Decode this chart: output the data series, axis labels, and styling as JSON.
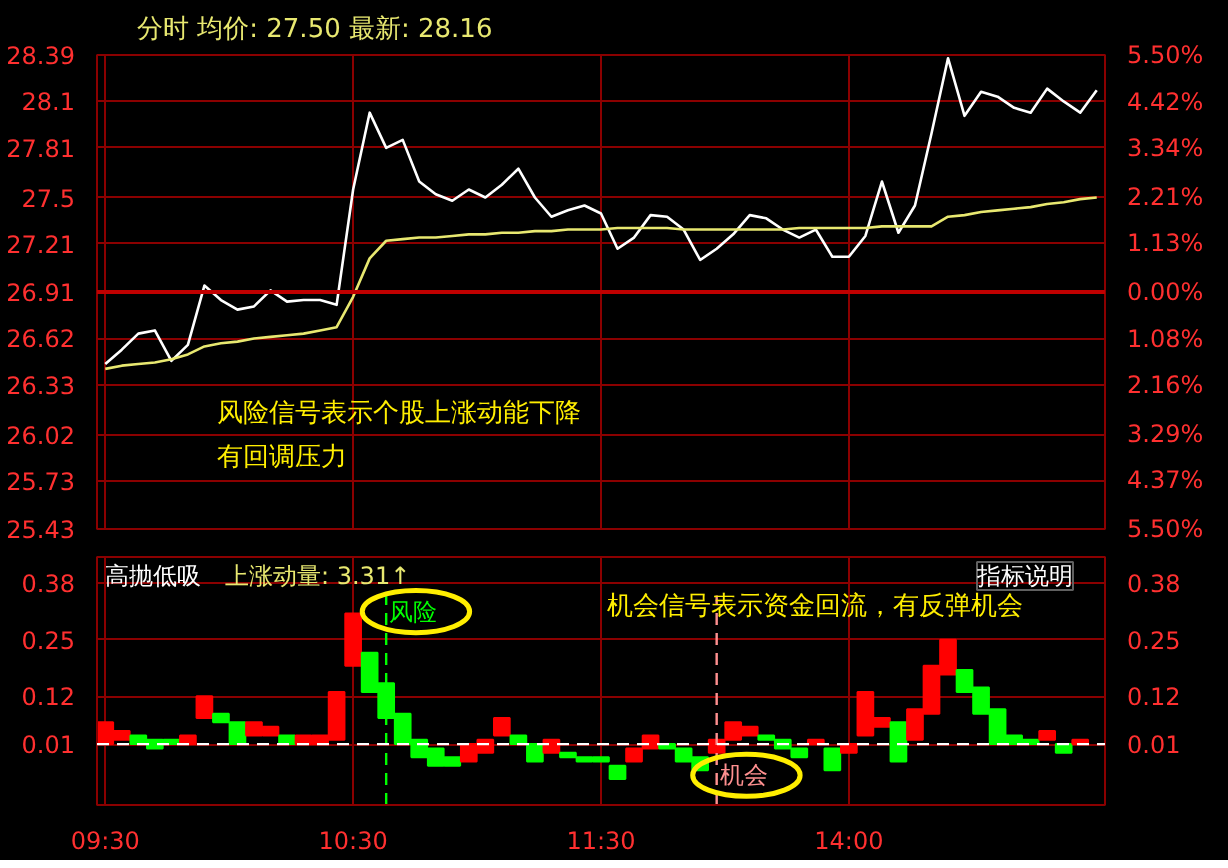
{
  "chart_data": [
    {
      "type": "line",
      "subtitle": "分时 均价: 27.50 最新: 28.16",
      "categories": [
        null,
        null,
        null,
        null,
        null,
        null,
        null,
        null,
        null,
        null,
        null,
        null,
        null,
        null,
        null,
        null,
        null,
        null,
        null,
        null,
        null,
        null,
        null,
        null,
        null,
        null,
        null,
        null,
        null,
        null,
        null,
        null,
        null,
        null,
        null,
        null,
        null,
        null,
        null,
        null,
        null,
        null,
        null,
        null,
        null,
        null,
        null,
        null,
        null,
        null,
        null,
        null,
        null,
        null,
        null,
        null,
        null,
        null,
        null,
        null,
        null
      ],
      "ylim": [
        25.43,
        28.39
      ],
      "yticks": [
        28.39,
        28.1,
        27.81,
        27.5,
        27.21,
        26.91,
        26.62,
        26.33,
        26.02,
        25.73,
        25.43
      ],
      "y2lim": [
        -5.5,
        5.5
      ],
      "y2ticks": [
        {
          "value": 5.5,
          "label": "5.50%"
        },
        {
          "value": 4.42,
          "label": "4.42%"
        },
        {
          "value": 3.34,
          "label": "3.34%"
        },
        {
          "value": 2.21,
          "label": "2.21%"
        },
        {
          "value": 1.13,
          "label": "1.13%"
        },
        {
          "value": 0,
          "label": "0.00%"
        },
        {
          "value": -1.08,
          "label": "1.08%"
        },
        {
          "value": -2.16,
          "label": "2.16%"
        },
        {
          "value": -3.29,
          "label": "3.29%"
        },
        {
          "value": -4.37,
          "label": "4.37%"
        },
        {
          "value": -5.5,
          "label": "5.50%"
        }
      ],
      "tick_labels": "y",
      "grid": true,
      "series": [
        {
          "color": "#ffffff",
          "values": [
            26.46,
            26.55,
            26.65,
            26.67,
            26.48,
            26.58,
            26.95,
            26.86,
            26.8,
            26.82,
            26.92,
            26.85,
            26.86,
            26.86,
            26.83,
            27.55,
            28.03,
            27.81,
            27.86,
            27.6,
            27.52,
            27.48,
            27.55,
            27.5,
            27.58,
            27.68,
            27.5,
            27.38,
            27.42,
            27.45,
            27.4,
            27.18,
            27.25,
            27.39,
            27.38,
            27.3,
            27.11,
            27.18,
            27.27,
            27.39,
            27.37,
            27.3,
            27.25,
            27.3,
            27.13,
            27.13,
            27.26,
            27.6,
            27.28,
            27.45,
            27.9,
            28.37,
            28.01,
            28.16,
            28.13,
            28.06,
            28.03,
            28.18,
            28.1,
            28.03,
            28.17
          ]
        },
        {
          "color": "#e8e870",
          "values": [
            26.43,
            26.45,
            26.46,
            26.47,
            26.49,
            26.52,
            26.57,
            26.59,
            26.6,
            26.62,
            26.63,
            26.64,
            26.65,
            26.67,
            26.69,
            26.88,
            27.12,
            27.23,
            27.24,
            27.25,
            27.25,
            27.26,
            27.27,
            27.27,
            27.28,
            27.28,
            27.29,
            27.29,
            27.3,
            27.3,
            27.3,
            27.31,
            27.31,
            27.31,
            27.31,
            27.3,
            27.3,
            27.3,
            27.3,
            27.3,
            27.3,
            27.3,
            27.31,
            27.31,
            27.31,
            27.31,
            27.31,
            27.32,
            27.32,
            27.32,
            27.32,
            27.38,
            27.39,
            27.41,
            27.42,
            27.43,
            27.44,
            27.46,
            27.47,
            27.49,
            27.5
          ]
        }
      ],
      "ref_lines": [
        {
          "axis": "y",
          "value": 26.91,
          "color": "#c00000"
        }
      ],
      "annotations": [
        "风险信号表示个股上涨动能下降",
        "有回调压力"
      ]
    },
    {
      "type": "bar",
      "title": "高抛低吸",
      "subtitle": "上涨动量: 3.31↑",
      "categories": [
        "09:30",
        null,
        null,
        null,
        null,
        null,
        null,
        null,
        null,
        null,
        null,
        null,
        null,
        null,
        null,
        "10:30",
        null,
        null,
        null,
        null,
        null,
        null,
        null,
        null,
        null,
        null,
        null,
        null,
        null,
        null,
        "11:30",
        null,
        null,
        null,
        null,
        null,
        null,
        null,
        null,
        null,
        null,
        null,
        null,
        null,
        null,
        "14:00",
        null,
        null,
        null,
        null,
        null,
        null,
        null,
        null,
        null,
        null,
        null,
        null,
        null,
        null,
        null
      ],
      "ylim": [
        -0.13,
        0.44
      ],
      "yticks": [
        0.01,
        0.12,
        0.25,
        0.38
      ],
      "y2lim": [
        -0.13,
        0.44
      ],
      "y2ticks": [
        0.01,
        0.12,
        0.25,
        0.38
      ],
      "grid": true,
      "base": [
        0.01,
        0.02,
        0.01,
        0,
        0.01,
        0.01,
        0.07,
        0.06,
        0.01,
        0.03,
        0.03,
        0.01,
        0.01,
        0.01,
        0.02,
        0.19,
        0.13,
        0.07,
        0.01,
        -0.02,
        -0.04,
        -0.04,
        -0.03,
        -0.01,
        0.03,
        0.01,
        -0.03,
        -0.01,
        -0.02,
        -0.03,
        -0.03,
        -0.07,
        -0.03,
        0,
        0,
        -0.03,
        -0.05,
        -0.01,
        0.02,
        0.03,
        0.02,
        0,
        -0.02,
        0.01,
        -0.05,
        -0.01,
        0.03,
        0.05,
        -0.03,
        0.02,
        0.08,
        0.17,
        0.13,
        0.08,
        0.01,
        0.01,
        0.01,
        0.02,
        -0.01,
        0.01,
        null
      ],
      "values": [
        0.05,
        0.02,
        0.02,
        0.02,
        0.01,
        0.02,
        0.05,
        0.02,
        0.05,
        0.03,
        0.02,
        0.02,
        0.02,
        0.02,
        0.11,
        0.12,
        0.09,
        0.08,
        0.07,
        0.04,
        0.04,
        0.02,
        0.04,
        0.03,
        0.04,
        0.02,
        0.04,
        0.03,
        0.01,
        0.01,
        0.01,
        0.03,
        0.03,
        0.03,
        0.01,
        0.03,
        0.03,
        0.03,
        0.04,
        0.02,
        0.01,
        0.02,
        0.02,
        0.01,
        0.05,
        0.02,
        0.1,
        0.02,
        0.09,
        0.07,
        0.11,
        0.08,
        0.05,
        0.06,
        0.08,
        0.02,
        0.01,
        0.02,
        0.02,
        0.01,
        null
      ],
      "colors": [
        "#ff0000",
        "#ff0000",
        "#00ff00",
        "#00ff00",
        "#00ff00",
        "#ff0000",
        "#ff0000",
        "#00ff00",
        "#00ff00",
        "#ff0000",
        "#ff0000",
        "#00ff00",
        "#ff0000",
        "#ff0000",
        "#ff0000",
        "#ff0000",
        "#00ff00",
        "#00ff00",
        "#00ff00",
        "#00ff00",
        "#00ff00",
        "#00ff00",
        "#ff0000",
        "#ff0000",
        "#ff0000",
        "#00ff00",
        "#00ff00",
        "#ff0000",
        "#00ff00",
        "#00ff00",
        "#00ff00",
        "#00ff00",
        "#ff0000",
        "#ff0000",
        "#00ff00",
        "#00ff00",
        "#00ff00",
        "#ff0000",
        "#ff0000",
        "#ff0000",
        "#00ff00",
        "#00ff00",
        "#00ff00",
        "#ff0000",
        "#00ff00",
        "#ff0000",
        "#ff0000",
        "#ff0000",
        "#00ff00",
        "#ff0000",
        "#ff0000",
        "#ff0000",
        "#00ff00",
        "#00ff00",
        "#00ff00",
        "#00ff00",
        "#00ff00",
        "#ff0000",
        "#00ff00",
        "#ff0000",
        "#ff0000"
      ],
      "ref_lines": [
        {
          "axis": "y",
          "value": 0.01,
          "color": "#ffffff",
          "line_style": "dashed"
        }
      ],
      "annotations": [
        "机会信号表示资金回流，有反弹机会",
        "指标说明",
        "风险",
        "机会"
      ]
    }
  ]
}
